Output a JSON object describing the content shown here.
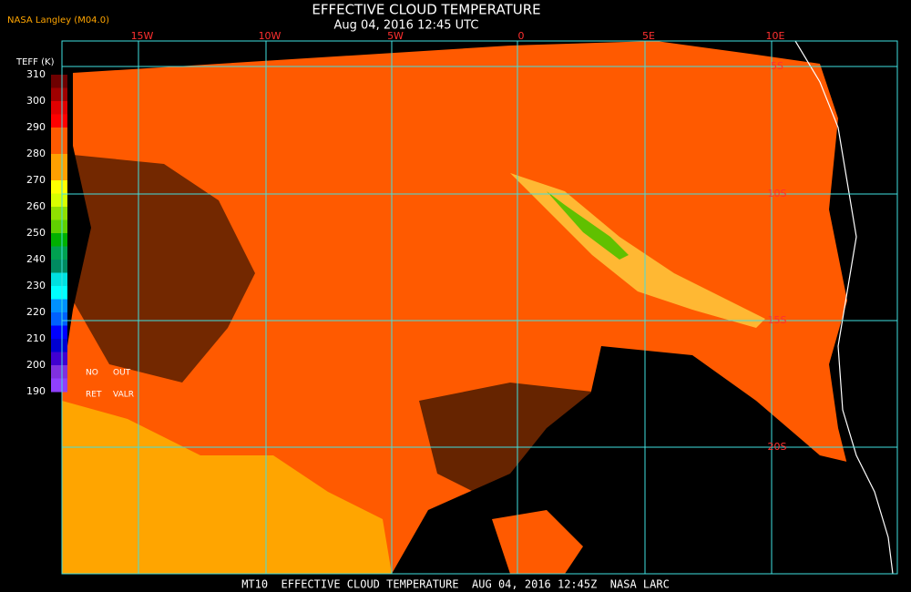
{
  "header": {
    "source": "NASA Langley (M04.0)",
    "title": "EFFECTIVE CLOUD TEMPERATURE",
    "subtitle": "Aug 04, 2016 12:45 UTC"
  },
  "colorbar": {
    "title": "TEFF (K)",
    "ticks": [
      310,
      300,
      290,
      280,
      270,
      260,
      250,
      240,
      230,
      220,
      210,
      200,
      190
    ],
    "colors": [
      "#6e0000",
      "#a00000",
      "#e00000",
      "#ff0000",
      "#ff5a00",
      "#ff5a00",
      "#ffa000",
      "#ffa000",
      "#ffff00",
      "#d8ff00",
      "#90e000",
      "#60d000",
      "#00b000",
      "#00a050",
      "#008a60",
      "#00e0e0",
      "#00ffff",
      "#0090ff",
      "#0060ff",
      "#0000ff",
      "#0000d0",
      "#4000d0",
      "#8030e0",
      "#9040ff"
    ],
    "notes": [
      "NO",
      "OUT",
      "RET",
      "VALR"
    ]
  },
  "map": {
    "longitudes": [
      "15W",
      "10W",
      "5W",
      "0",
      "5E",
      "10E"
    ],
    "latitudes": [
      "5S",
      "10S",
      "15S",
      "20S"
    ]
  },
  "footer": "MT10  EFFECTIVE CLOUD TEMPERATURE  AUG 04, 2016 12:45Z  NASA LARC"
}
